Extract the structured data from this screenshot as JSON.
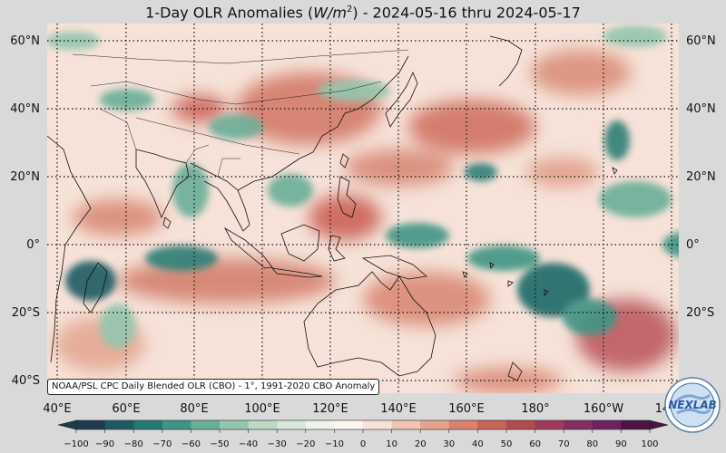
{
  "title": {
    "prefix": "1-Day OLR Anomalies (",
    "var": "W/m",
    "sup": "2",
    "suffix": ") - 2024-05-16 thru 2024-05-17"
  },
  "attribution": "NOAA/PSL CPC Daily Blended OLR (CBO) - 1°, 1991-2020 CBO Anomaly",
  "logo_text": "NEXLAB",
  "lat_labels": [
    "60°N",
    "40°N",
    "20°N",
    "0°",
    "20°S",
    "40°S"
  ],
  "lon_labels": [
    "40°E",
    "60°E",
    "80°E",
    "100°E",
    "120°E",
    "140°E",
    "160°E",
    "180°",
    "160°W",
    "14"
  ],
  "colorbar": {
    "ticks": [
      "−100",
      "−90",
      "−80",
      "−70",
      "−60",
      "−50",
      "−40",
      "−30",
      "−20",
      "−10",
      "0",
      "10",
      "20",
      "30",
      "40",
      "50",
      "60",
      "70",
      "80",
      "90",
      "100"
    ],
    "colors": [
      "#1f3b4d",
      "#1f5a62",
      "#207a70",
      "#3f9585",
      "#6aae98",
      "#94c6ae",
      "#bdd9c4",
      "#d9e8da",
      "#eef3ee",
      "#fdf5f0",
      "#f8e3d8",
      "#f0c5b3",
      "#e5a38d",
      "#d9836d",
      "#c96354",
      "#b44952",
      "#9c3a5c",
      "#842e63",
      "#6a2260",
      "#4a1544"
    ]
  },
  "map": {
    "lat_range": [
      -44,
      66
    ],
    "lon_range": [
      40,
      225
    ],
    "land_color": "#ffffff",
    "positive_color": "#d9836d",
    "negative_color": "#207a70"
  }
}
